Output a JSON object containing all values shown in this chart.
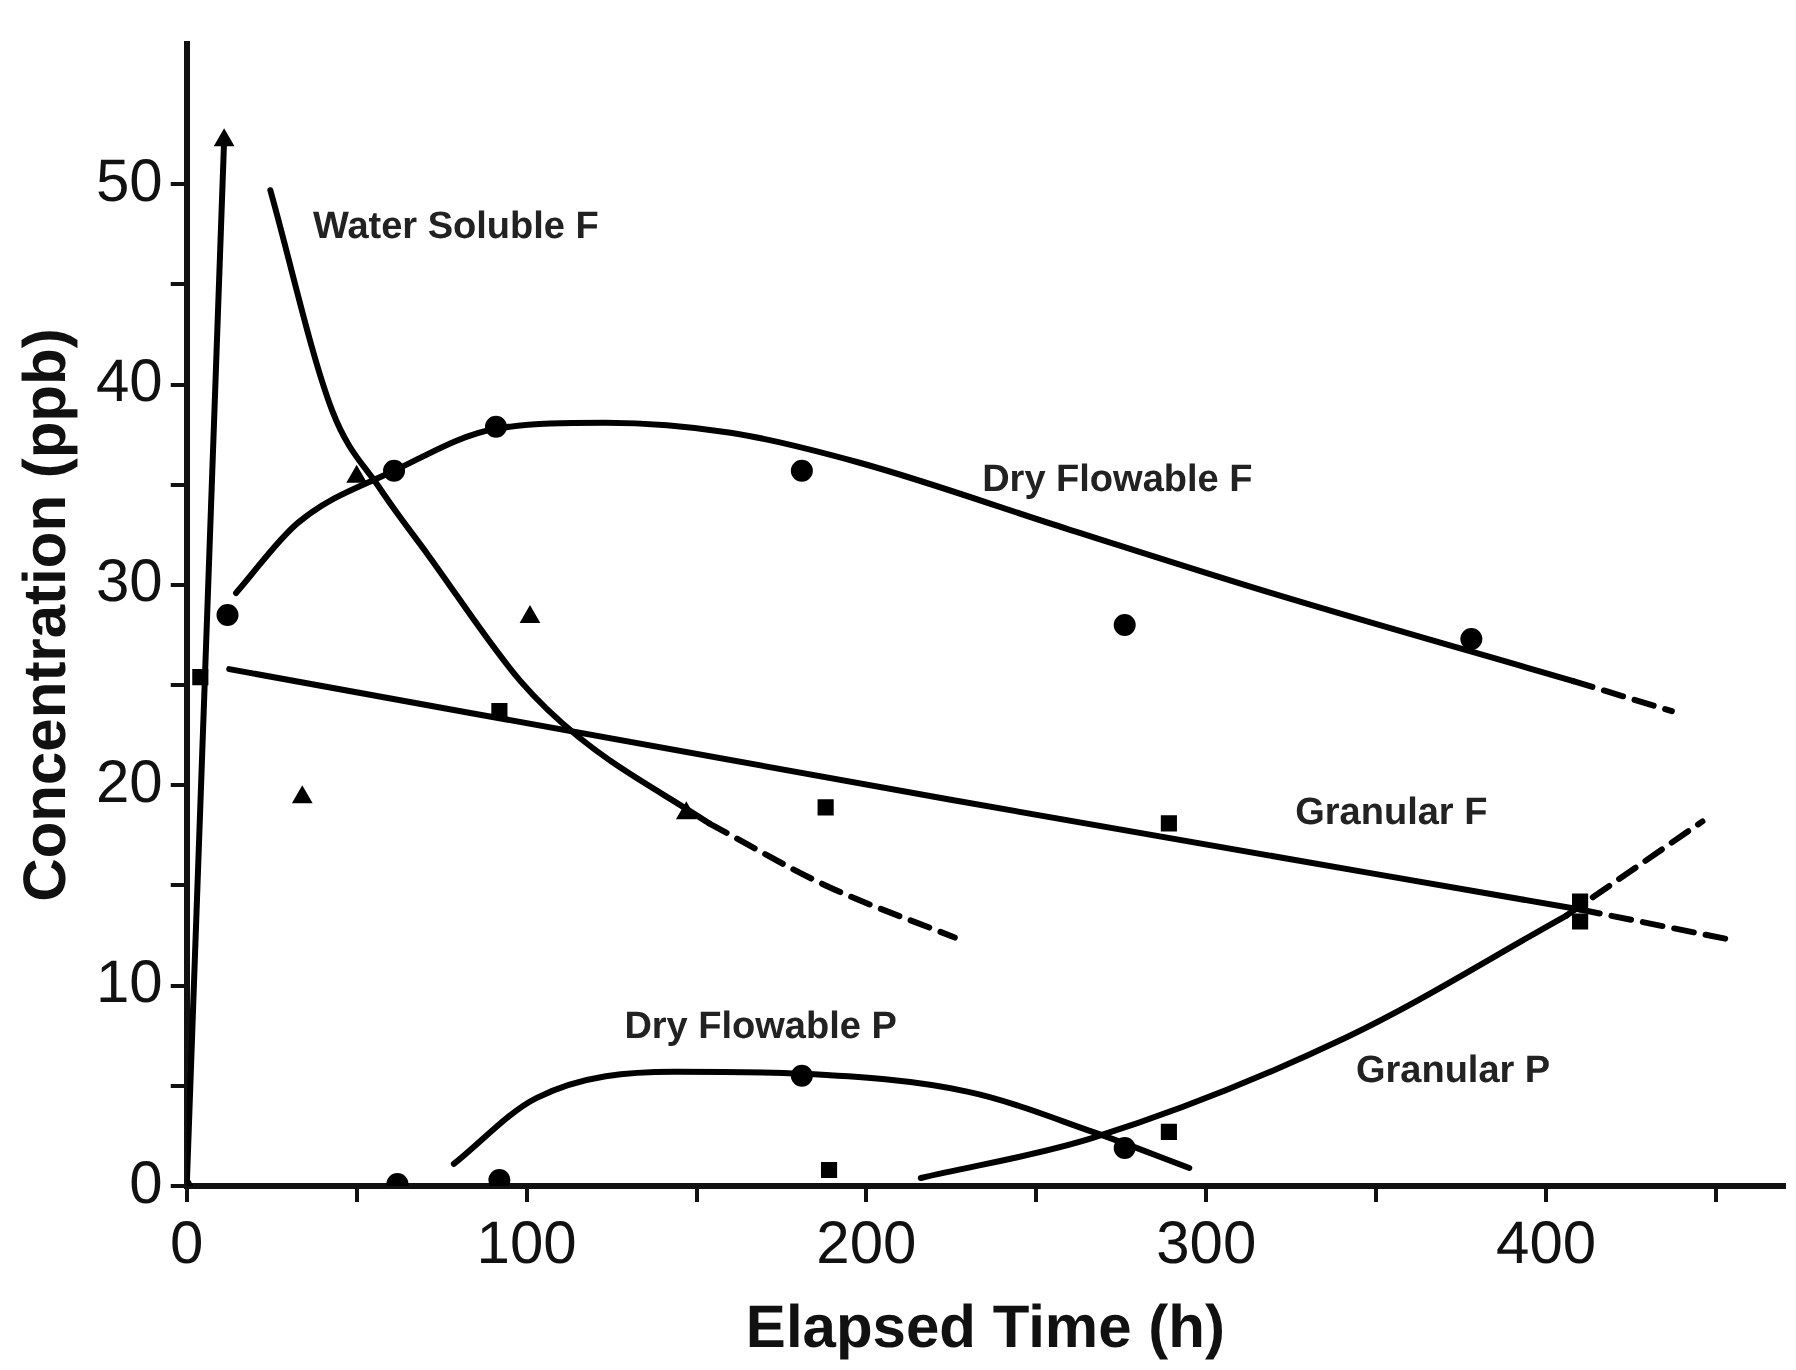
{
  "chart_data": {
    "type": "scatter",
    "xlabel": "Elapsed Time (h)",
    "ylabel": "Concentration (ppb)",
    "xlim": [
      0,
      470
    ],
    "xticks": [
      0,
      {
        "value": 50,
        "label": null
      },
      100,
      {
        "value": 150,
        "label": null
      },
      200,
      {
        "value": 250,
        "label": null
      },
      300,
      {
        "value": 350,
        "label": null
      },
      400,
      {
        "value": 450,
        "label": null
      }
    ],
    "ylim": [
      0,
      57
    ],
    "yticks": [
      0,
      {
        "value": 5,
        "label": null
      },
      10,
      {
        "value": 15,
        "label": null
      },
      20,
      {
        "value": 25,
        "label": null
      },
      30,
      {
        "value": 35,
        "label": null
      },
      40,
      {
        "value": 45,
        "label": null
      },
      50
    ],
    "grid": false,
    "legend": false,
    "series": [
      {
        "type": "scatter",
        "marker": "circle",
        "color": "#000000",
        "x": [
          12,
          61,
          91,
          181,
          276,
          378
        ],
        "values": [
          28.5,
          35.7,
          37.9,
          35.7,
          28.0,
          27.3
        ]
      },
      {
        "type": "scatter",
        "marker": "triangle",
        "color": "#000000",
        "x": [
          0,
          11,
          34,
          50,
          101,
          147
        ],
        "values": [
          0,
          52.2,
          19.4,
          35.4,
          28.4,
          18.6
        ]
      },
      {
        "type": "scatter",
        "marker": "square",
        "color": "#000000",
        "x": [
          4,
          92,
          188,
          289,
          410
        ],
        "values": [
          25.4,
          23.7,
          18.9,
          18.1,
          13.2
        ]
      },
      {
        "type": "scatter",
        "marker": "square",
        "color": "#000000",
        "x": [
          189,
          289,
          410
        ],
        "values": [
          0.8,
          2.7,
          14.2
        ]
      },
      {
        "type": "scatter",
        "marker": "circle",
        "color": "#000000",
        "x": [
          62,
          92,
          181,
          276
        ],
        "values": [
          0.1,
          0.3,
          5.5,
          1.9
        ]
      },
      {
        "type": "line",
        "line_style": "solid",
        "color": "#000000",
        "x": [
          0,
          11
        ],
        "values": [
          0,
          52.2
        ]
      },
      {
        "type": "line",
        "line_style": "solid",
        "color": "#000000",
        "x": [
          24.6,
          42.8,
          56.9,
          71,
          98.2,
          115.4,
          153.7
        ],
        "values": [
          49.7,
          38.7,
          34.8,
          31.5,
          25.2,
          22.4,
          18.1
        ]
      },
      {
        "type": "line",
        "line_style": "dashed",
        "color": "#000000",
        "x": [
          153.7,
          188,
          226
        ],
        "values": [
          18.1,
          15.0,
          12.4
        ]
      },
      {
        "type": "line",
        "line_style": "solid",
        "color": "#000000",
        "x": [
          14.5,
          32.7,
          61,
          91,
          123,
          160,
          198,
          259,
          319,
          408
        ],
        "values": [
          29.6,
          33.1,
          35.7,
          37.8,
          38.1,
          37.6,
          36.1,
          32.8,
          29.6,
          25.2
        ]
      },
      {
        "type": "line",
        "line_style": "dashed",
        "color": "#000000",
        "x": [
          408,
          437
        ],
        "values": [
          25.2,
          23.7
        ]
      },
      {
        "type": "line",
        "line_style": "solid",
        "color": "#000000",
        "x": [
          12.5,
          224,
          410
        ],
        "values": [
          25.8,
          19.3,
          13.8
        ]
      },
      {
        "type": "line",
        "line_style": "dashed",
        "color": "#000000",
        "x": [
          410,
          454
        ],
        "values": [
          13.8,
          12.3
        ]
      },
      {
        "type": "line",
        "line_style": "solid",
        "color": "#000000",
        "x": [
          78.6,
          103,
          143.6,
          181,
          230,
          266.6,
          295
        ],
        "values": [
          1.1,
          4.4,
          5.7,
          5.6,
          4.7,
          2.7,
          0.9
        ]
      },
      {
        "type": "line",
        "line_style": "solid",
        "color": "#000000",
        "x": [
          216,
          266.6,
          341,
          406
        ],
        "values": [
          0.4,
          2.4,
          7.4,
          13.5
        ]
      },
      {
        "type": "line",
        "line_style": "dashed",
        "color": "#000000",
        "x": [
          406,
          446
        ],
        "values": [
          13.5,
          18.2
        ]
      }
    ],
    "annotations": [
      "Water Soluble F",
      "Dry Flowable F",
      "Granular F",
      "Dry Flowable P",
      "Granular P"
    ]
  }
}
